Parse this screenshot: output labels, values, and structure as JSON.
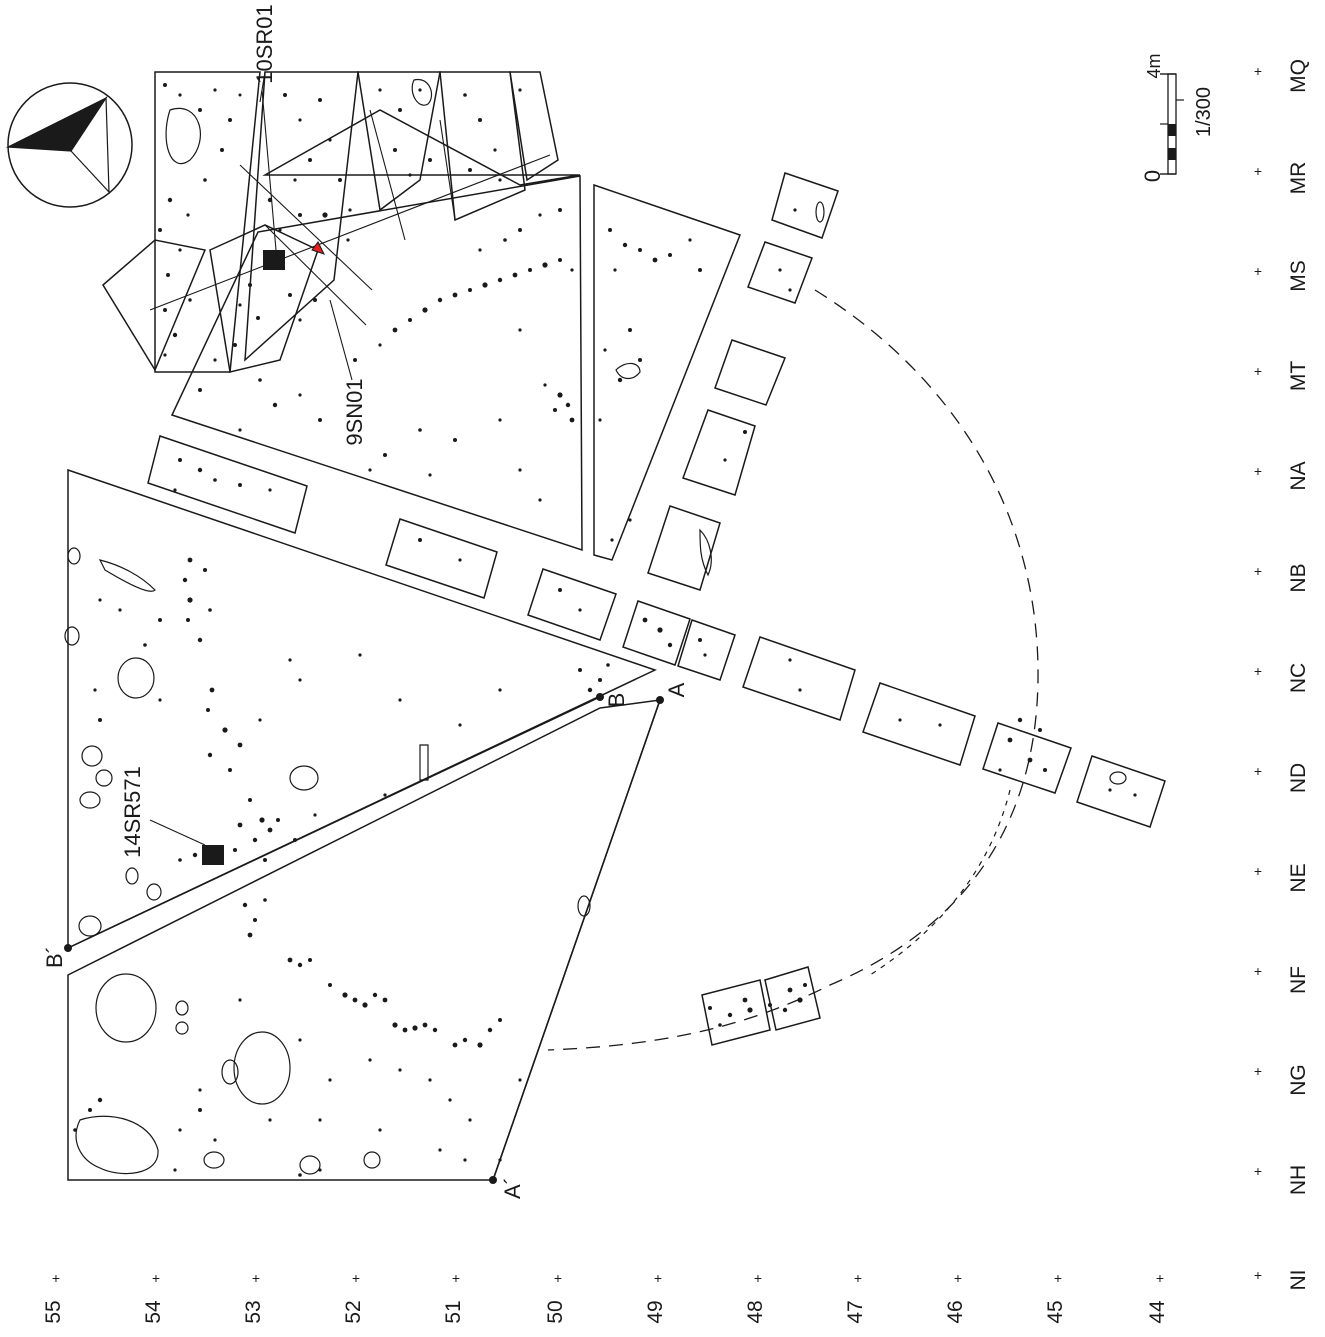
{
  "scale": {
    "zero_label": "0",
    "length_label": "4m",
    "ratio_label": "1/300"
  },
  "grid": {
    "right_labels": [
      "MQ",
      "MR",
      "MS",
      "MT",
      "NA",
      "NB",
      "NC",
      "ND",
      "NE",
      "NF",
      "NG",
      "NH",
      "NI"
    ],
    "bottom_labels": [
      "55",
      "54",
      "53",
      "52",
      "51",
      "50",
      "49",
      "48",
      "47",
      "46",
      "45",
      "44"
    ]
  },
  "features": {
    "feature_10sr01": "10SR01",
    "feature_9sn01": "9SN01",
    "feature_14sr571": "14SR571"
  },
  "section_points": {
    "a": "A",
    "a_prime": "A´",
    "b": "B",
    "b_prime": "B´"
  },
  "colors": {
    "ink": "#1a1a1a",
    "highlight": "#e02020"
  },
  "icons": {
    "north_arrow": "north-arrow-icon",
    "scale_bar": "scale-bar-icon"
  }
}
